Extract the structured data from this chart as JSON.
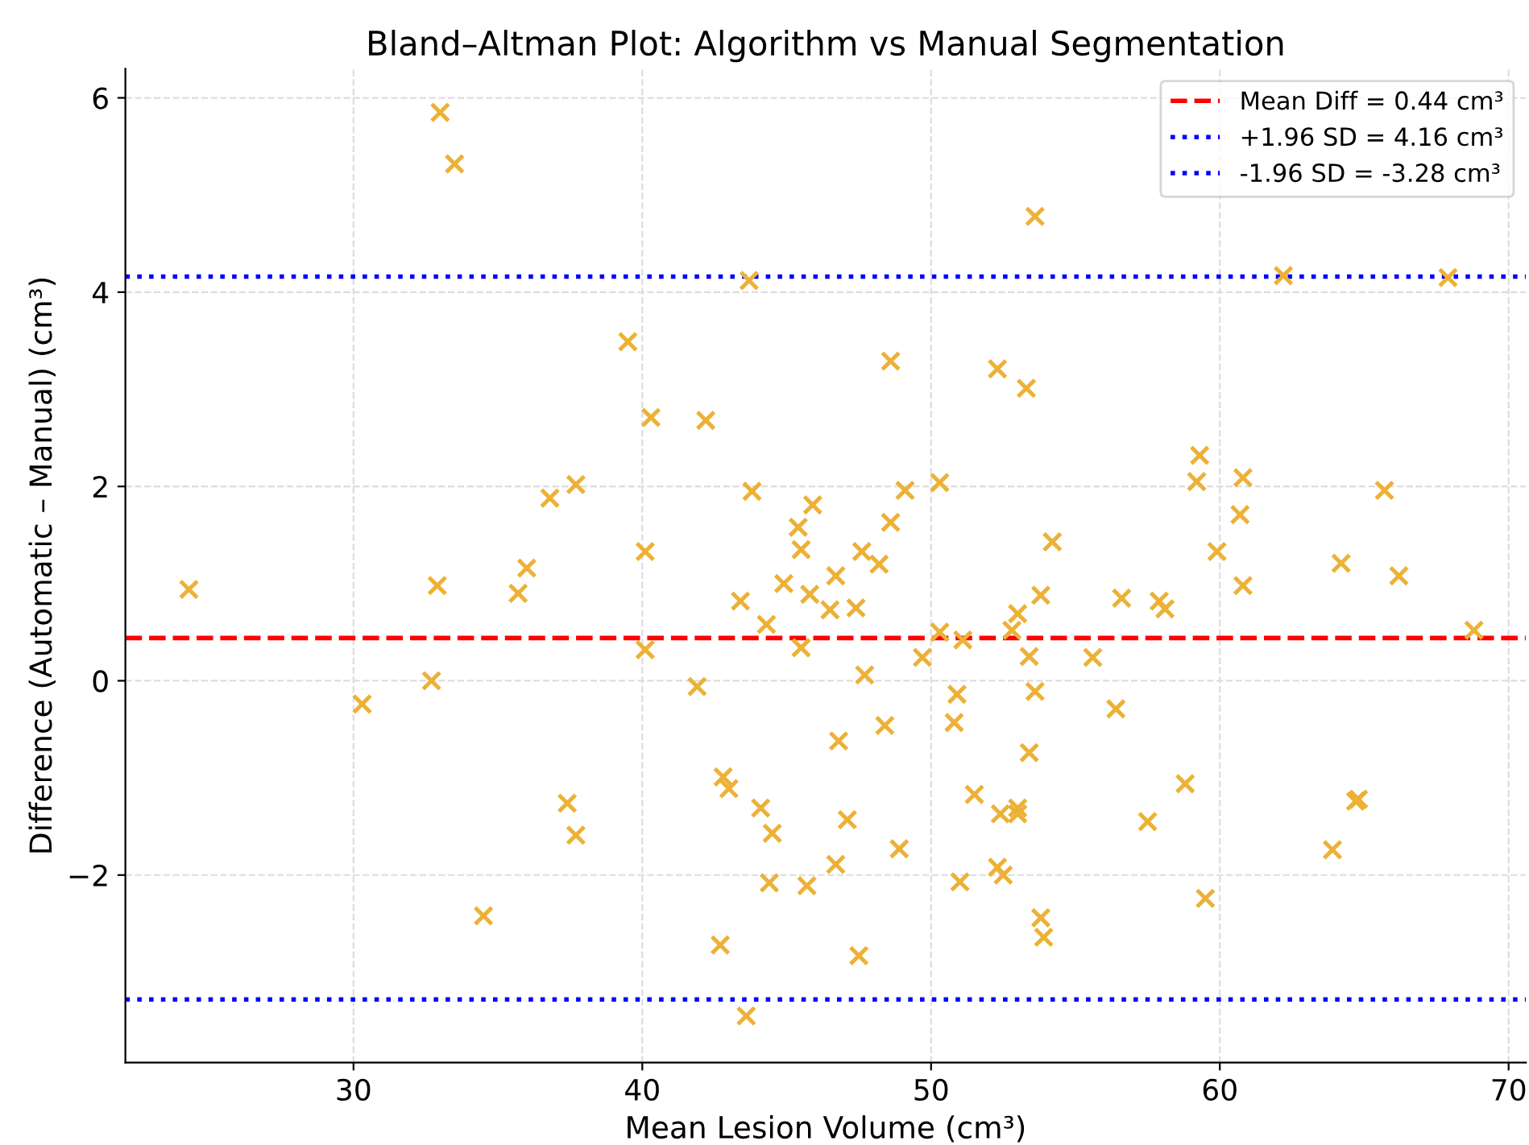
{
  "chart_data": {
    "type": "scatter",
    "title": "Bland–Altman Plot: Algorithm vs Manual Segmentation",
    "xlabel": "Mean Lesion Volume (cm³)",
    "ylabel": "Difference (Automatic – Manual) (cm³)",
    "series": [
      {
        "color": "#ecb136",
        "marker": "cross",
        "x": [
          24.3,
          30.3,
          33.0,
          33.5,
          32.9,
          32.7,
          34.5,
          35.7,
          36.0,
          36.8,
          37.7,
          37.4,
          37.7,
          39.5,
          40.3,
          40.1,
          40.1,
          41.9,
          42.2,
          43.7,
          43.8,
          43.4,
          42.8,
          43.0,
          42.7,
          43.6,
          44.3,
          44.1,
          44.5,
          44.4,
          45.4,
          45.5,
          45.9,
          44.9,
          45.8,
          45.5,
          45.7,
          46.5,
          46.7,
          47.6,
          47.4,
          46.8,
          47.1,
          46.7,
          47.5,
          47.7,
          48.2,
          48.4,
          48.6,
          48.6,
          48.9,
          49.1,
          49.7,
          50.3,
          50.3,
          50.8,
          50.9,
          51.1,
          51.0,
          51.5,
          52.3,
          52.3,
          52.5,
          52.4,
          52.8,
          53.0,
          53.0,
          53.0,
          53.3,
          53.6,
          53.4,
          53.6,
          53.4,
          53.8,
          53.8,
          53.9,
          54.2,
          55.6,
          56.4,
          56.6,
          57.5,
          57.9,
          58.1,
          58.8,
          59.3,
          59.2,
          59.5,
          59.9,
          60.7,
          60.8,
          60.8,
          62.2,
          63.9,
          64.2,
          64.7,
          64.8,
          65.7,
          66.2,
          67.9,
          68.8
        ],
        "values": [
          0.94,
          -0.24,
          5.85,
          5.32,
          0.98,
          0.0,
          -2.42,
          0.9,
          1.16,
          1.88,
          2.02,
          -1.26,
          -1.59,
          3.49,
          2.71,
          1.33,
          0.32,
          -0.06,
          2.68,
          4.12,
          1.95,
          0.82,
          -0.99,
          -1.11,
          -2.72,
          -3.45,
          0.58,
          -1.31,
          -1.57,
          -2.08,
          1.58,
          1.35,
          1.81,
          1.0,
          0.89,
          0.34,
          -2.11,
          0.73,
          1.08,
          1.33,
          0.75,
          -0.62,
          -1.43,
          -1.89,
          -2.83,
          0.06,
          1.2,
          -0.46,
          1.63,
          3.29,
          -1.73,
          1.96,
          0.24,
          2.04,
          0.5,
          -0.43,
          -0.14,
          0.42,
          -2.07,
          -1.17,
          3.21,
          -1.92,
          -2.0,
          -1.37,
          0.52,
          0.69,
          -1.37,
          -1.31,
          3.01,
          4.78,
          0.25,
          -0.11,
          -0.74,
          0.88,
          -2.44,
          -2.64,
          1.43,
          0.24,
          -0.29,
          0.85,
          -1.45,
          0.82,
          0.74,
          -1.06,
          2.32,
          2.05,
          -2.24,
          1.33,
          1.71,
          2.09,
          0.98,
          4.17,
          -1.74,
          1.21,
          -1.24,
          -1.22,
          1.96,
          1.08,
          4.15,
          0.52
        ]
      }
    ],
    "ref_lines": [
      {
        "axis": "y",
        "value": 0.44,
        "label": "Mean Diff = 0.44 cm³",
        "color": "#ff0000",
        "line_style": "dashed"
      },
      {
        "axis": "y",
        "value": 4.16,
        "label": "+1.96 SD = 4.16 cm³",
        "color": "#0000ff",
        "line_style": "dotted"
      },
      {
        "axis": "y",
        "value": -3.28,
        "label": "-1.96 SD = -3.28 cm³",
        "color": "#0000ff",
        "line_style": "dotted"
      }
    ],
    "xlim": [
      22.1,
      70.6
    ],
    "ylim": [
      -3.93,
      6.3
    ],
    "xticks": [
      30,
      40,
      50,
      60,
      70
    ],
    "yticks": [
      {
        "value": -2,
        "label": "−2"
      },
      0,
      2,
      4,
      6
    ],
    "grid": true,
    "legend": "top right"
  }
}
